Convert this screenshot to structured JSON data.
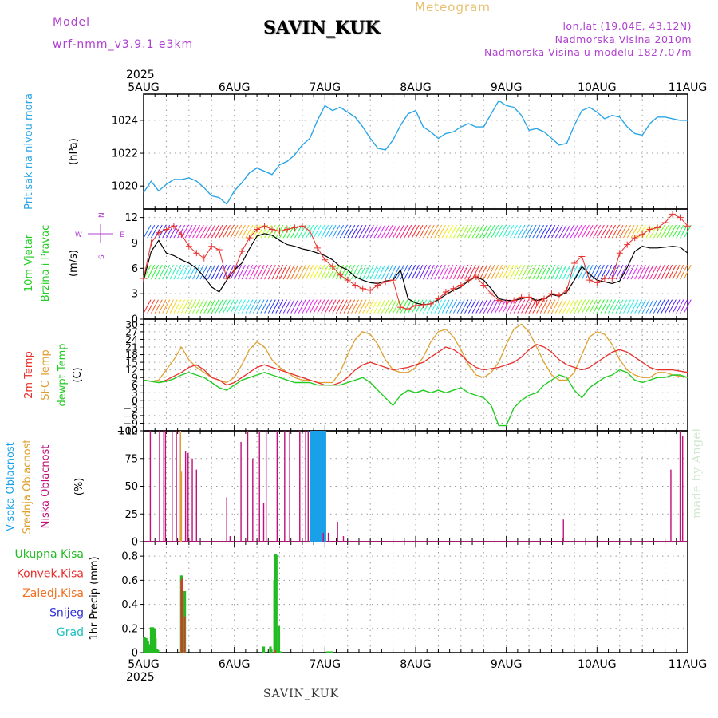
{
  "header": {
    "model_label": "Model",
    "model_name": "wrf-nmm_v3.9.1 e3km",
    "station": "SAVIN_KUK",
    "title": "Meteogram",
    "coords": "lon,lat (19.04E, 43.12N)",
    "elevation": "Nadmorska Visina 2010m",
    "model_elevation": "Nadmorska Visina u modelu 1827.07m"
  },
  "footer": {
    "station": "SAVIN_KUK",
    "watermark": "made by Angel"
  },
  "colors": {
    "pressure": "#2aa6e8",
    "wind_black": "#000000",
    "wind_cross": "#e8302c",
    "t2m": "#e8302c",
    "sfc": "#e0a030",
    "dewpt": "#22cc22",
    "high_cloud": "#1aa0e8",
    "mid_cloud": "#e0a030",
    "low_cloud": "#c0107a",
    "total_precip": "#22bb22",
    "conv_precip": "#e83030",
    "frozen": "#f07020",
    "snow": "#3030d8",
    "hail": "#20c0c0",
    "grid": "#9a9a9a"
  },
  "chart_data": [
    {
      "type": "line",
      "id": "pressure",
      "ylabel": "Pritisak na nivou mora",
      "unit": "(hPa)",
      "ylim": [
        1018.6,
        1025.6
      ],
      "yticks": [
        1020,
        1022,
        1024
      ],
      "x_hours_step": 3,
      "x_ticks": [
        "5AUG",
        "6AUG",
        "7AUG",
        "8AUG",
        "9AUG",
        "10AUG",
        "11AUG"
      ],
      "top_year": "2025",
      "values": [
        1019.6,
        1020.3,
        1019.7,
        1020.1,
        1020.4,
        1020.4,
        1020.5,
        1020.3,
        1019.9,
        1019.4,
        1019.3,
        1018.9,
        1019.7,
        1020.2,
        1020.8,
        1021.1,
        1020.9,
        1020.7,
        1021.3,
        1021.5,
        1021.9,
        1022.5,
        1022.9,
        1024.0,
        1024.9,
        1024.6,
        1024.8,
        1024.5,
        1024.2,
        1023.6,
        1022.9,
        1022.3,
        1022.2,
        1022.8,
        1023.7,
        1024.4,
        1024.6,
        1023.6,
        1023.3,
        1022.9,
        1023.2,
        1023.3,
        1023.6,
        1023.8,
        1023.6,
        1023.6,
        1024.4,
        1025.2,
        1024.9,
        1024.8,
        1024.3,
        1023.4,
        1023.5,
        1023.3,
        1022.9,
        1022.5,
        1022.6,
        1023.7,
        1024.6,
        1024.8,
        1024.5,
        1024.1,
        1024.3,
        1024.2,
        1023.6,
        1023.2,
        1023.1,
        1023.8,
        1024.2,
        1024.2,
        1024.1,
        1024.0,
        1024.0
      ]
    },
    {
      "type": "line",
      "id": "wind",
      "ylabel": [
        "10m Vjetar",
        "Brzina i Pravac"
      ],
      "unit": "(m/s)",
      "compass": {
        "n": "N",
        "w": "W",
        "e": "E",
        "s": "S"
      },
      "ylim": [
        0,
        13
      ],
      "yticks": [
        0,
        3,
        6,
        9,
        12
      ],
      "speed": [
        4.6,
        8.0,
        9.3,
        7.8,
        7.5,
        7.0,
        6.6,
        6.0,
        5.0,
        3.8,
        3.2,
        4.6,
        5.8,
        6.6,
        8.3,
        9.8,
        10.1,
        9.9,
        9.3,
        8.8,
        8.6,
        8.3,
        8.1,
        7.8,
        7.5,
        7.0,
        6.2,
        5.8,
        5.0,
        4.6,
        4.3,
        4.2,
        4.5,
        4.6,
        5.8,
        2.4,
        1.9,
        1.7,
        1.8,
        2.3,
        2.9,
        3.4,
        3.8,
        4.5,
        5.0,
        4.6,
        3.6,
        2.4,
        2.2,
        2.2,
        2.4,
        2.6,
        2.2,
        2.4,
        2.9,
        2.7,
        3.2,
        4.6,
        6.2,
        5.3,
        4.6,
        4.4,
        4.2,
        4.5,
        6.1,
        8.0,
        8.6,
        8.4,
        8.4,
        8.5,
        8.6,
        8.5,
        7.8
      ],
      "gust": [
        4.8,
        9.0,
        10.2,
        10.6,
        11.0,
        10.0,
        8.6,
        7.8,
        7.2,
        8.6,
        8.2,
        4.8,
        5.8,
        8.0,
        9.6,
        10.6,
        11.0,
        10.6,
        10.4,
        10.6,
        10.8,
        11.0,
        10.4,
        8.4,
        7.0,
        6.2,
        5.2,
        4.6,
        4.0,
        3.6,
        3.4,
        4.0,
        4.4,
        4.6,
        1.4,
        1.2,
        1.6,
        1.7,
        1.8,
        2.4,
        3.2,
        3.6,
        4.0,
        4.6,
        5.0,
        4.0,
        3.0,
        2.2,
        2.0,
        2.2,
        2.6,
        2.6,
        2.0,
        2.4,
        3.0,
        2.8,
        3.4,
        6.6,
        7.4,
        4.6,
        4.3,
        4.8,
        4.8,
        7.8,
        8.8,
        9.6,
        10.0,
        10.6,
        10.8,
        11.4,
        12.4,
        12.0,
        11.0
      ]
    },
    {
      "type": "line",
      "id": "temperature",
      "ylabel": [
        "2m Temp",
        "SFC Temp",
        "dewpt Temp"
      ],
      "unit": "(C)",
      "ylim": [
        -12,
        32
      ],
      "yticks": [
        -12,
        -9,
        -6,
        -3,
        0,
        3,
        6,
        9,
        12,
        15,
        18,
        21,
        24,
        27,
        30
      ],
      "t2m": [
        8,
        7.5,
        7,
        8,
        9.5,
        11,
        13,
        14,
        12,
        9,
        8,
        6,
        7,
        9,
        11,
        13,
        14,
        13,
        12,
        11,
        10,
        9,
        8,
        7,
        6,
        6,
        7,
        9,
        12,
        14,
        15,
        14,
        13,
        12,
        12.5,
        13,
        14,
        15,
        17,
        19,
        21,
        20,
        18,
        15,
        13,
        12,
        12.5,
        13,
        14,
        15,
        17,
        20,
        22,
        21,
        19,
        16,
        14,
        13,
        12,
        13,
        15,
        17,
        19,
        20,
        19,
        17,
        15,
        13,
        12,
        12,
        12,
        11.5,
        11
      ],
      "sfc": [
        8,
        7.5,
        8,
        12,
        16,
        21,
        16,
        13,
        11,
        9,
        8,
        7,
        9,
        14,
        20,
        23,
        21,
        16,
        13,
        11,
        9,
        8,
        8,
        7,
        7,
        7,
        11,
        18,
        24,
        27,
        26,
        22,
        16,
        12,
        11,
        11,
        13,
        17,
        23,
        27,
        28,
        25,
        20,
        14,
        10,
        9,
        11,
        15,
        22,
        28,
        30,
        27,
        21,
        15,
        10,
        8,
        8,
        11,
        18,
        25,
        27,
        26,
        22,
        16,
        12,
        10,
        9,
        9,
        11,
        11,
        10,
        9.5,
        9
      ],
      "dewpt": [
        8,
        7.5,
        7,
        7.5,
        8.5,
        10,
        11,
        10,
        9,
        7,
        5,
        4,
        6,
        8,
        9,
        10,
        11,
        10,
        9,
        8,
        7,
        7,
        7,
        6,
        6,
        6,
        6,
        7,
        8,
        9,
        7,
        4,
        1,
        -2,
        2,
        4,
        3,
        4,
        3,
        4,
        3,
        4,
        5,
        3,
        2,
        1,
        -2,
        -10,
        -10,
        -3,
        0,
        2,
        3,
        6,
        8,
        10,
        9,
        4,
        1,
        5,
        7,
        9,
        10,
        12,
        11,
        8,
        7,
        8,
        9,
        9,
        10,
        10,
        9
      ]
    },
    {
      "type": "bar",
      "id": "clouds",
      "ylabel": [
        "Visoka Oblacnost",
        "Srednja Oblacnost",
        "Niska Oblacnost"
      ],
      "unit": "(%)",
      "ylim": [
        0,
        100
      ],
      "yticks": [
        0,
        25,
        50,
        75,
        100
      ],
      "x_minor_step": 1,
      "low": [
        [
          8,
          100
        ],
        [
          19,
          100
        ],
        [
          24,
          100
        ],
        [
          26,
          100
        ],
        [
          34,
          100
        ],
        [
          39,
          100
        ],
        [
          44,
          100
        ],
        [
          45,
          63
        ],
        [
          50,
          82
        ],
        [
          53,
          80
        ],
        [
          58,
          75
        ],
        [
          63,
          65
        ],
        [
          99,
          40
        ],
        [
          103,
          5
        ],
        [
          116,
          90
        ],
        [
          124,
          100
        ],
        [
          130,
          75
        ],
        [
          138,
          100
        ],
        [
          143,
          35
        ],
        [
          146,
          100
        ],
        [
          159,
          100
        ],
        [
          168,
          100
        ],
        [
          174,
          100
        ],
        [
          186,
          100
        ],
        [
          193,
          100
        ],
        [
          196,
          100
        ],
        [
          214,
          8
        ],
        [
          220,
          8
        ],
        [
          231,
          18
        ],
        [
          238,
          5
        ],
        [
          500,
          20
        ],
        [
          628,
          65
        ],
        [
          639,
          100
        ],
        [
          642,
          95
        ]
      ],
      "mid": [
        [
          44,
          100
        ],
        [
          45,
          63
        ]
      ],
      "high": [
        [
          200,
          100
        ],
        [
          201,
          100
        ],
        [
          202,
          100
        ],
        [
          203,
          100
        ],
        [
          204,
          100
        ],
        [
          205,
          100
        ],
        [
          206,
          100
        ],
        [
          207,
          100
        ],
        [
          208,
          95
        ],
        [
          209,
          100
        ],
        [
          210,
          100
        ],
        [
          211,
          15
        ],
        [
          212,
          100
        ],
        [
          213,
          100
        ],
        [
          214,
          100
        ],
        [
          215,
          100
        ],
        [
          216,
          100
        ]
      ]
    },
    {
      "type": "bar",
      "id": "precip",
      "ylabel": "1hr Precip (mm)",
      "unit": "",
      "legend": [
        "Ukupna Kisa",
        "Konvek.Kisa",
        "Zaledj.Kisa",
        "Snijeg",
        "Grad"
      ],
      "ylim": [
        0,
        0.92
      ],
      "yticks": [
        0,
        0.2,
        0.4,
        0.6,
        0.8
      ],
      "x_minor_step": 1,
      "total": [
        [
          1,
          0.13
        ],
        [
          3,
          0.12
        ],
        [
          5,
          0.1
        ],
        [
          7,
          0.07
        ],
        [
          9,
          0.21
        ],
        [
          11,
          0.21
        ],
        [
          13,
          0.2
        ],
        [
          14,
          0.12
        ],
        [
          16,
          0.03
        ],
        [
          17,
          0.02
        ],
        [
          45,
          0.64
        ],
        [
          46,
          0.63
        ],
        [
          49,
          0.51
        ],
        [
          143,
          0.05
        ],
        [
          151,
          0.05
        ],
        [
          152,
          0.03
        ],
        [
          156,
          0.6
        ],
        [
          157,
          0.82
        ],
        [
          158,
          0.81
        ],
        [
          161,
          0.22
        ],
        [
          163,
          0.01
        ],
        [
          219,
          0.01
        ],
        [
          222,
          0.01
        ],
        [
          224,
          0.01
        ]
      ],
      "conv": [
        [
          45,
          0.6
        ],
        [
          46,
          0.62
        ],
        [
          49,
          0.3
        ],
        [
          157,
          0.02
        ]
      ],
      "bottom_year": "2025"
    }
  ]
}
